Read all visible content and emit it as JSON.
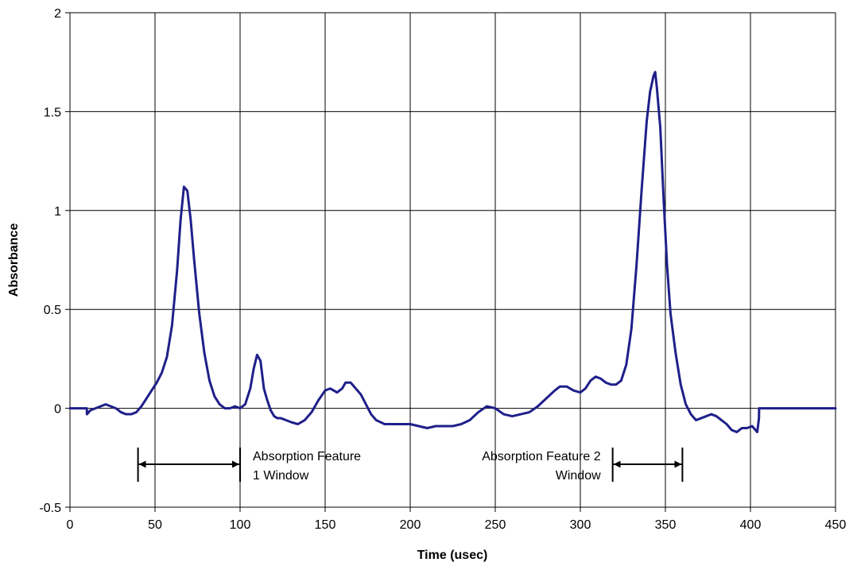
{
  "chart_data": {
    "type": "line",
    "title": "",
    "xlabel": "Time (usec)",
    "ylabel": "Absorbance",
    "xlim": [
      0,
      450
    ],
    "ylim": [
      -0.5,
      2
    ],
    "xticks": [
      0,
      50,
      100,
      150,
      200,
      250,
      300,
      350,
      400,
      450
    ],
    "yticks": [
      -0.5,
      0,
      0.5,
      1,
      1.5,
      2
    ],
    "xtick_labels": [
      "0",
      "50",
      "100",
      "150",
      "200",
      "250",
      "300",
      "350",
      "400",
      "450"
    ],
    "ytick_labels": [
      "-0.5",
      "0",
      "0.5",
      "1",
      "1.5",
      "2"
    ],
    "grid": true,
    "legend": "none",
    "series_color": "#1f1f8a",
    "series": [
      {
        "x": [
          0,
          9.9,
          10,
          12,
          15,
          18,
          21,
          24,
          27,
          30,
          33,
          36,
          39,
          42,
          45,
          48,
          51,
          54,
          57,
          60,
          63,
          65,
          67,
          69,
          71,
          73,
          76,
          79,
          82,
          85,
          88,
          91,
          94,
          97,
          100,
          103,
          106,
          108,
          110,
          112,
          113,
          114,
          116,
          118,
          120,
          122,
          124,
          127,
          130,
          134,
          138,
          142,
          146,
          150,
          153,
          155,
          157,
          160,
          162,
          165,
          168,
          171,
          174,
          177,
          180,
          185,
          190,
          195,
          200,
          205,
          210,
          215,
          220,
          225,
          230,
          235,
          240,
          245,
          250,
          255,
          260,
          265,
          270,
          275,
          280,
          285,
          288,
          292,
          296,
          300,
          303,
          306,
          309,
          312,
          315,
          318,
          321,
          324,
          327,
          330,
          333,
          336,
          339,
          341,
          343,
          344,
          345,
          347,
          349,
          351,
          353,
          356,
          359,
          362,
          365,
          368,
          371,
          374,
          377,
          380,
          383,
          386,
          389,
          392,
          395,
          398,
          401,
          404,
          405,
          405.1,
          420,
          450
        ],
        "values": [
          0,
          0,
          -0.03,
          -0.01,
          0.0,
          0.01,
          0.02,
          0.01,
          0.0,
          -0.02,
          -0.03,
          -0.03,
          -0.02,
          0.01,
          0.05,
          0.09,
          0.13,
          0.18,
          0.26,
          0.42,
          0.7,
          0.95,
          1.12,
          1.1,
          0.95,
          0.75,
          0.48,
          0.28,
          0.14,
          0.06,
          0.02,
          0.0,
          0.0,
          0.01,
          0.0,
          0.02,
          0.1,
          0.2,
          0.27,
          0.24,
          0.17,
          0.1,
          0.04,
          -0.01,
          -0.04,
          -0.05,
          -0.05,
          -0.06,
          -0.07,
          -0.08,
          -0.06,
          -0.02,
          0.04,
          0.09,
          0.1,
          0.09,
          0.08,
          0.1,
          0.13,
          0.13,
          0.1,
          0.07,
          0.02,
          -0.03,
          -0.06,
          -0.08,
          -0.08,
          -0.08,
          -0.08,
          -0.09,
          -0.1,
          -0.09,
          -0.09,
          -0.09,
          -0.08,
          -0.06,
          -0.02,
          0.01,
          0.0,
          -0.03,
          -0.04,
          -0.03,
          -0.02,
          0.01,
          0.05,
          0.09,
          0.11,
          0.11,
          0.09,
          0.08,
          0.1,
          0.14,
          0.16,
          0.15,
          0.13,
          0.12,
          0.12,
          0.14,
          0.22,
          0.4,
          0.72,
          1.1,
          1.45,
          1.6,
          1.68,
          1.7,
          1.62,
          1.42,
          1.05,
          0.72,
          0.48,
          0.28,
          0.12,
          0.02,
          -0.03,
          -0.06,
          -0.05,
          -0.04,
          -0.03,
          -0.04,
          -0.06,
          -0.08,
          -0.11,
          -0.12,
          -0.1,
          -0.1,
          -0.09,
          -0.12,
          -0.05,
          0,
          0,
          0
        ]
      }
    ],
    "annotations": [
      {
        "lines": [
          "Absorption Feature",
          "1 Window"
        ],
        "x_range": [
          40,
          100
        ],
        "align": "left",
        "label_side": "right"
      },
      {
        "lines": [
          "Absorption Feature 2",
          "Window"
        ],
        "x_range": [
          319,
          360
        ],
        "align": "right",
        "label_side": "left"
      }
    ]
  }
}
